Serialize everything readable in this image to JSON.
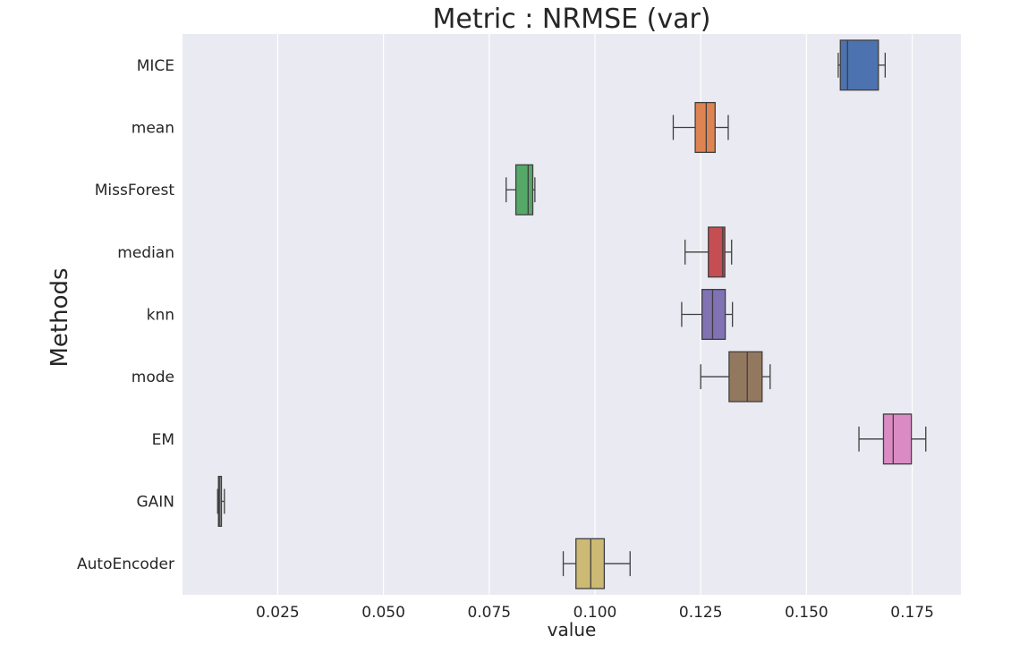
{
  "chart_data": {
    "type": "boxplot",
    "orientation": "horizontal",
    "title": "Metric : NRMSE (var)",
    "xlabel": "value",
    "ylabel": "Methods",
    "xlim": [
      0.0025,
      0.1865
    ],
    "xticks": [
      0.025,
      0.05,
      0.075,
      0.1,
      0.125,
      0.15,
      0.175
    ],
    "xtick_labels": [
      "0.025",
      "0.050",
      "0.075",
      "0.100",
      "0.125",
      "0.150",
      "0.175"
    ],
    "grid": true,
    "background_color": "#eaeaf2",
    "categories": [
      "MICE",
      "mean",
      "MissForest",
      "median",
      "knn",
      "mode",
      "EM",
      "GAIN",
      "AutoEncoder"
    ],
    "boxes": [
      {
        "name": "MICE",
        "whisker_low": 0.1575,
        "q1": 0.158,
        "median": 0.1597,
        "q3": 0.167,
        "whisker_high": 0.1686,
        "color": "#4c72b0"
      },
      {
        "name": "mean",
        "whisker_low": 0.1185,
        "q1": 0.1237,
        "median": 0.1263,
        "q3": 0.1284,
        "whisker_high": 0.1315,
        "color": "#dd8452"
      },
      {
        "name": "MissForest",
        "whisker_low": 0.079,
        "q1": 0.0813,
        "median": 0.0842,
        "q3": 0.0853,
        "whisker_high": 0.0858,
        "color": "#55a868"
      },
      {
        "name": "median",
        "whisker_low": 0.1213,
        "q1": 0.1268,
        "median": 0.1302,
        "q3": 0.1307,
        "whisker_high": 0.1323,
        "color": "#c44e52"
      },
      {
        "name": "knn",
        "whisker_low": 0.1205,
        "q1": 0.1253,
        "median": 0.1278,
        "q3": 0.1308,
        "whisker_high": 0.1325,
        "color": "#8172b3"
      },
      {
        "name": "mode",
        "whisker_low": 0.125,
        "q1": 0.1317,
        "median": 0.136,
        "q3": 0.1395,
        "whisker_high": 0.1414,
        "color": "#937860"
      },
      {
        "name": "EM",
        "whisker_low": 0.1624,
        "q1": 0.1682,
        "median": 0.1705,
        "q3": 0.1748,
        "whisker_high": 0.1782,
        "color": "#da8bc3"
      },
      {
        "name": "GAIN",
        "whisker_low": 0.0108,
        "q1": 0.011,
        "median": 0.0112,
        "q3": 0.0117,
        "whisker_high": 0.0124,
        "color": "#8c8c8c"
      },
      {
        "name": "AutoEncoder",
        "whisker_low": 0.0925,
        "q1": 0.0955,
        "median": 0.099,
        "q3": 0.1022,
        "whisker_high": 0.1083,
        "color": "#ccb974"
      }
    ]
  }
}
